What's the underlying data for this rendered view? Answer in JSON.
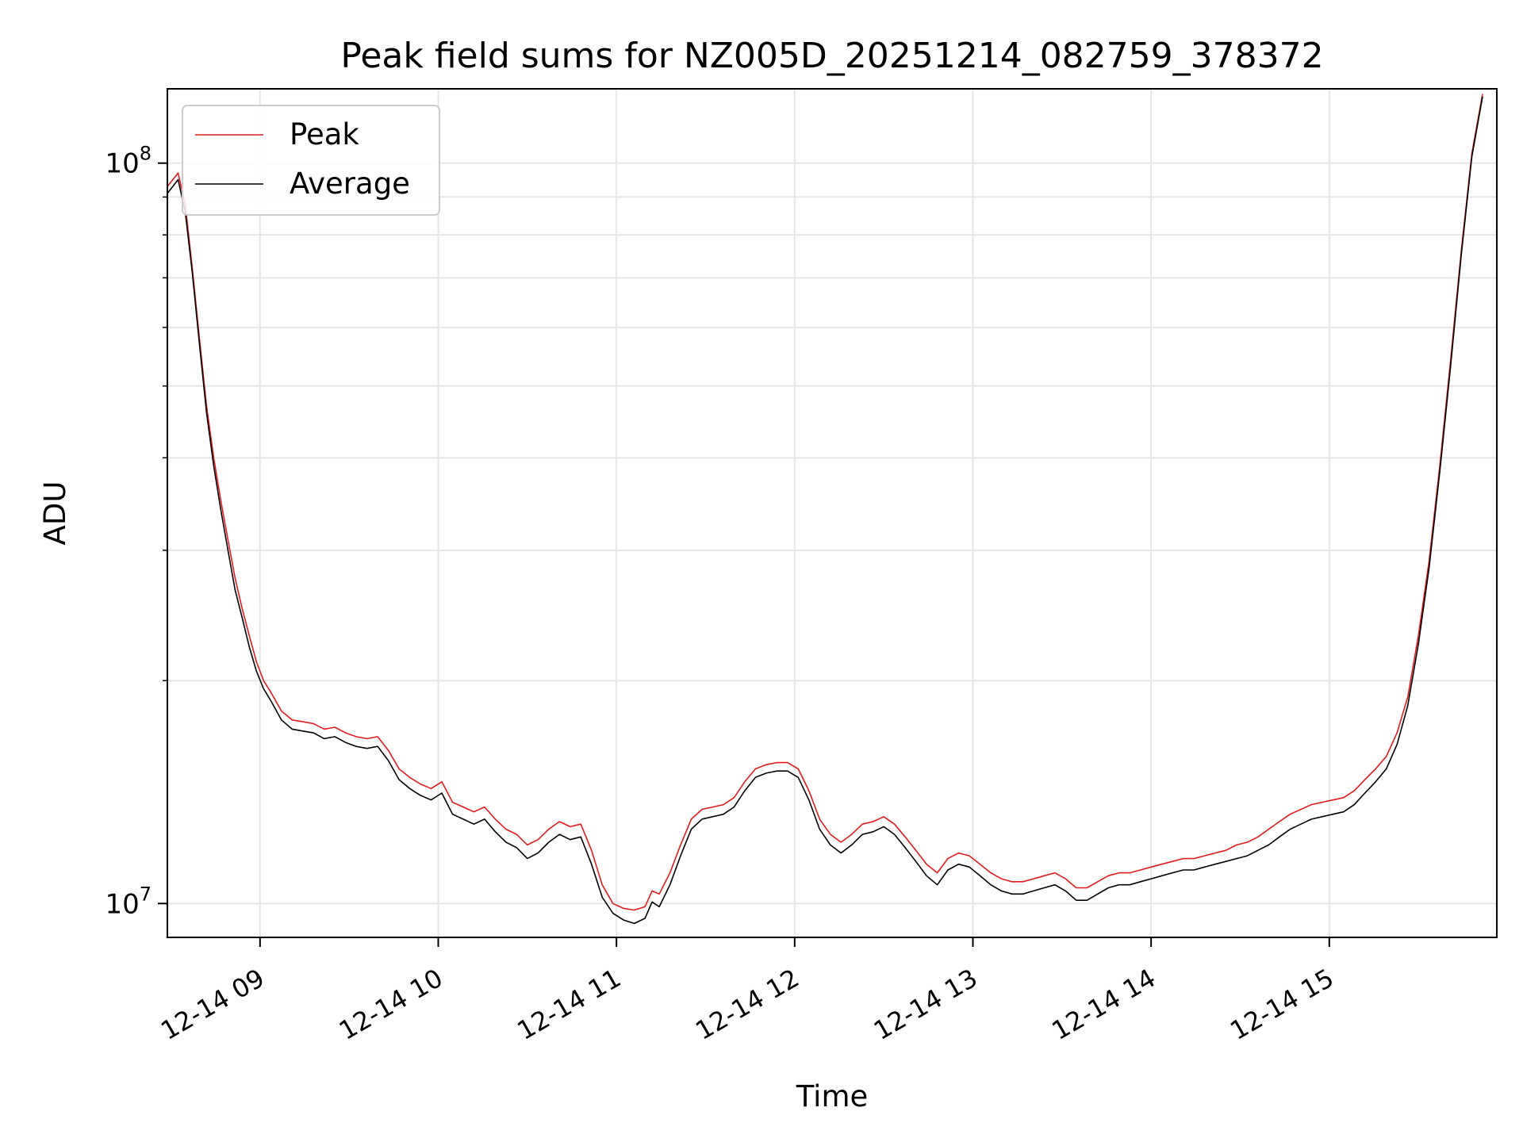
{
  "chart_data": {
    "type": "line",
    "title": "Peak field sums for NZ005D_20251214_082759_378372",
    "xlabel": "Time",
    "ylabel": "ADU",
    "yscale": "log",
    "ylim": [
      9000000,
      126000000
    ],
    "xlim_hours": [
      8.48,
      15.94
    ],
    "grid": true,
    "legend_position": "upper-left",
    "x_ticks": [
      {
        "value": 9,
        "label": "12-14 09"
      },
      {
        "value": 10,
        "label": "12-14 10"
      },
      {
        "value": 11,
        "label": "12-14 11"
      },
      {
        "value": 12,
        "label": "12-14 12"
      },
      {
        "value": 13,
        "label": "12-14 13"
      },
      {
        "value": 14,
        "label": "12-14 14"
      },
      {
        "value": 15,
        "label": "12-14 15"
      }
    ],
    "y_ticks": [
      {
        "value": 10000000,
        "base": "10",
        "exp": "7"
      },
      {
        "value": 100000000,
        "base": "10",
        "exp": "8"
      }
    ],
    "y_minor_ticks": [
      20000000,
      30000000,
      40000000,
      50000000,
      60000000,
      70000000,
      80000000,
      90000000
    ],
    "x_hours": [
      8.48,
      8.54,
      8.58,
      8.62,
      8.66,
      8.7,
      8.74,
      8.78,
      8.82,
      8.86,
      8.9,
      8.94,
      8.98,
      9.02,
      9.06,
      9.12,
      9.18,
      9.24,
      9.3,
      9.36,
      9.42,
      9.48,
      9.54,
      9.6,
      9.66,
      9.72,
      9.78,
      9.84,
      9.9,
      9.96,
      10.02,
      10.08,
      10.14,
      10.2,
      10.26,
      10.32,
      10.38,
      10.44,
      10.5,
      10.56,
      10.62,
      10.68,
      10.74,
      10.8,
      10.86,
      10.92,
      10.98,
      11.04,
      11.1,
      11.16,
      11.2,
      11.24,
      11.3,
      11.36,
      11.42,
      11.48,
      11.54,
      11.6,
      11.66,
      11.72,
      11.78,
      11.84,
      11.9,
      11.96,
      12.02,
      12.08,
      12.14,
      12.2,
      12.26,
      12.32,
      12.38,
      12.44,
      12.5,
      12.56,
      12.62,
      12.68,
      12.74,
      12.8,
      12.86,
      12.92,
      12.98,
      13.04,
      13.1,
      13.16,
      13.22,
      13.28,
      13.34,
      13.4,
      13.46,
      13.52,
      13.58,
      13.64,
      13.7,
      13.76,
      13.82,
      13.88,
      13.94,
      14.0,
      14.06,
      14.12,
      14.18,
      14.24,
      14.3,
      14.36,
      14.42,
      14.48,
      14.54,
      14.6,
      14.66,
      14.72,
      14.78,
      14.84,
      14.9,
      14.96,
      15.02,
      15.08,
      15.14,
      15.2,
      15.26,
      15.32,
      15.38,
      15.44,
      15.5,
      15.56,
      15.62,
      15.68,
      15.74,
      15.8,
      15.86,
      15.94
    ],
    "series": [
      {
        "name": "Peak",
        "color": "#e41a1c",
        "values": [
          93000000,
          97000000,
          88000000,
          72000000,
          58000000,
          47000000,
          40000000,
          35000000,
          31000000,
          27500000,
          25000000,
          23000000,
          21200000,
          20000000,
          19300000,
          18200000,
          17700000,
          17600000,
          17500000,
          17200000,
          17300000,
          17000000,
          16800000,
          16700000,
          16800000,
          16100000,
          15200000,
          14800000,
          14500000,
          14300000,
          14600000,
          13700000,
          13500000,
          13300000,
          13500000,
          13000000,
          12600000,
          12400000,
          12000000,
          12200000,
          12600000,
          12900000,
          12700000,
          12800000,
          11800000,
          10600000,
          10000000,
          9850000,
          9800000,
          9900000,
          10400000,
          10300000,
          11000000,
          12000000,
          13000000,
          13400000,
          13500000,
          13600000,
          13900000,
          14600000,
          15200000,
          15400000,
          15500000,
          15500000,
          15200000,
          14200000,
          13000000,
          12400000,
          12100000,
          12400000,
          12800000,
          12900000,
          13100000,
          12800000,
          12300000,
          11800000,
          11300000,
          11000000,
          11500000,
          11700000,
          11600000,
          11300000,
          11000000,
          10800000,
          10700000,
          10700000,
          10800000,
          10900000,
          11000000,
          10800000,
          10500000,
          10500000,
          10700000,
          10900000,
          11000000,
          11000000,
          11100000,
          11200000,
          11300000,
          11400000,
          11500000,
          11500000,
          11600000,
          11700000,
          11800000,
          12000000,
          12100000,
          12300000,
          12600000,
          12900000,
          13200000,
          13400000,
          13600000,
          13700000,
          13800000,
          13900000,
          14200000,
          14700000,
          15200000,
          15800000,
          17000000,
          19000000,
          23000000,
          29000000,
          39000000,
          54000000,
          76000000,
          103000000,
          124000000
        ]
      },
      {
        "name": "Average",
        "color": "#000000",
        "values": [
          91000000,
          95000000,
          86000000,
          71000000,
          57000000,
          46000000,
          39000000,
          34000000,
          30000000,
          26500000,
          24300000,
          22200000,
          20600000,
          19500000,
          18800000,
          17700000,
          17200000,
          17100000,
          17000000,
          16700000,
          16800000,
          16500000,
          16300000,
          16200000,
          16300000,
          15600000,
          14700000,
          14300000,
          14000000,
          13800000,
          14100000,
          13200000,
          13000000,
          12800000,
          13000000,
          12500000,
          12100000,
          11900000,
          11500000,
          11700000,
          12100000,
          12400000,
          12200000,
          12300000,
          11300000,
          10200000,
          9700000,
          9500000,
          9400000,
          9550000,
          10050000,
          9900000,
          10600000,
          11600000,
          12600000,
          13000000,
          13100000,
          13200000,
          13500000,
          14200000,
          14800000,
          15000000,
          15100000,
          15100000,
          14800000,
          13800000,
          12600000,
          12000000,
          11700000,
          12000000,
          12400000,
          12500000,
          12700000,
          12400000,
          11900000,
          11400000,
          10900000,
          10600000,
          11100000,
          11300000,
          11200000,
          10900000,
          10600000,
          10400000,
          10300000,
          10300000,
          10400000,
          10500000,
          10600000,
          10400000,
          10100000,
          10100000,
          10300000,
          10500000,
          10600000,
          10600000,
          10700000,
          10800000,
          10900000,
          11000000,
          11100000,
          11100000,
          11200000,
          11300000,
          11400000,
          11500000,
          11600000,
          11800000,
          12000000,
          12300000,
          12600000,
          12800000,
          13000000,
          13100000,
          13200000,
          13300000,
          13600000,
          14100000,
          14600000,
          15200000,
          16400000,
          18500000,
          22400000,
          28400000,
          38300000,
          53000000,
          75000000,
          102000000,
          123000000
        ]
      }
    ]
  }
}
